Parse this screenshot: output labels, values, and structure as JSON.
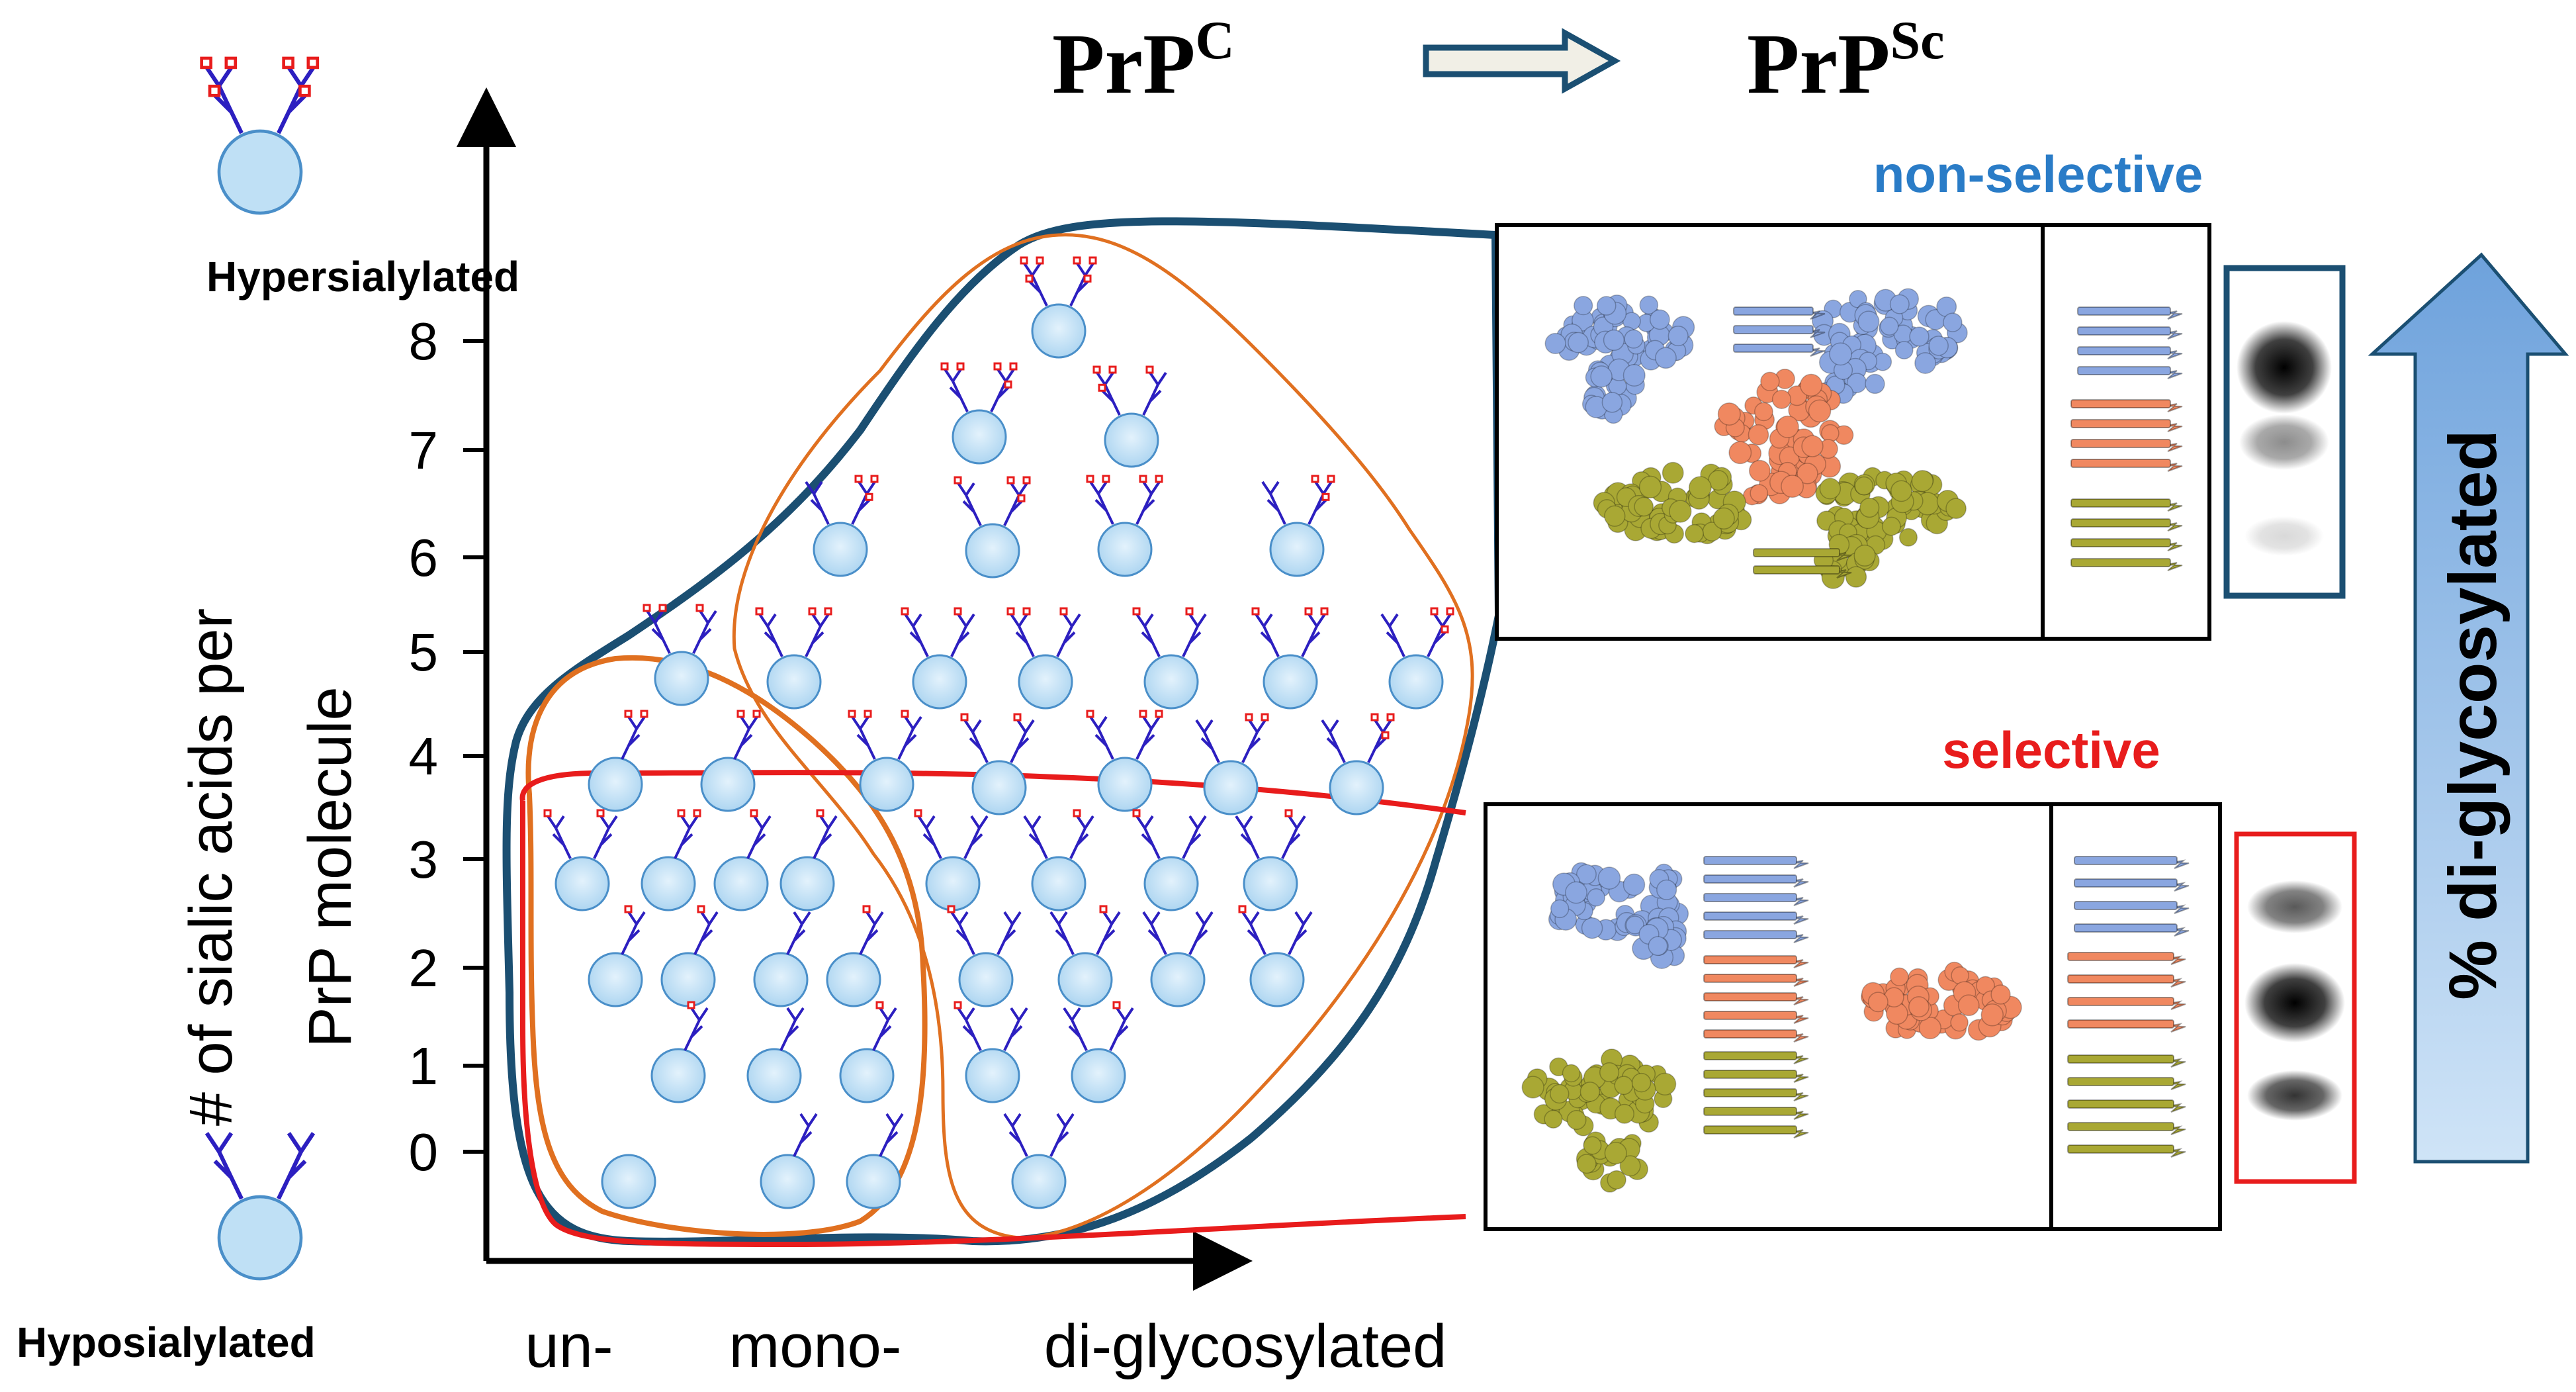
{
  "title": {
    "from_base": "PrP",
    "from_sup": "C",
    "to_base": "PrP",
    "to_sup": "Sc"
  },
  "side_labels": {
    "top": "Hypersialylated",
    "bottom": "Hyposialylated"
  },
  "y_axis": {
    "label_line1": "# of sialic acids per",
    "label_line2": "PrP molecule",
    "ticks": [
      "8",
      "7",
      "6",
      "5",
      "4",
      "3",
      "2",
      "1",
      "0"
    ]
  },
  "x_axis": {
    "categories": [
      "un-",
      "mono-",
      "di-glycosylated"
    ]
  },
  "panels": {
    "top_label": "non-selective",
    "bottom_label": "selective"
  },
  "right_arrow_label": "% di-glycosylated",
  "colors": {
    "navy": "#1b4f72",
    "orange": "#e07020",
    "red": "#e81c1c",
    "glycan_blue": "#2c1fc0",
    "sialic_red": "#e81c1c",
    "circle_fill": "#bfe0f5",
    "circle_stroke": "#4a8fc9",
    "protein_blue": "#8aa6e0",
    "protein_salmon": "#f08860",
    "protein_olive": "#a9a834",
    "label_blue": "#2a7cc7",
    "label_red": "#e81c1c",
    "arrow_fill": "#9cc4ea"
  }
}
